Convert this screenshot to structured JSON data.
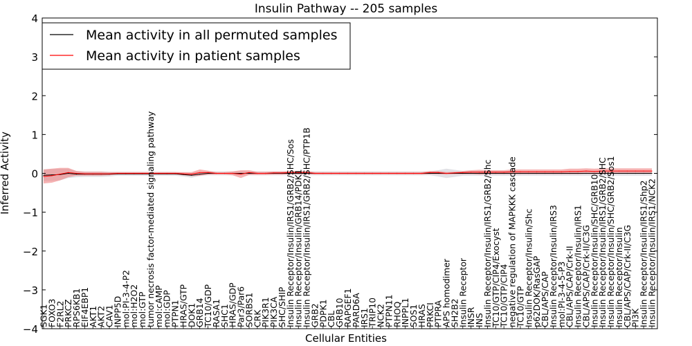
{
  "chart_data": {
    "type": "line",
    "title": "Insulin Pathway -- 205 samples",
    "xlabel": "Cellular Entities",
    "ylabel": "Inferred Activity",
    "ylim": [
      -4,
      4
    ],
    "yticks": [
      -4,
      -3,
      -2,
      -1,
      0,
      1,
      2,
      3,
      4
    ],
    "legend_location": "top-left",
    "categories": [
      "SGK1",
      "FOXO3",
      "F2RL2",
      "PRKCZ",
      "RPS6KB1",
      "EIF4EBP1",
      "AKT1",
      "AKT2",
      "CAV1",
      "INPP5D",
      "mol:PI-3-4-P2",
      "mol:H2O2",
      "mol:GTP",
      "tumor necrosis factor-mediated signaling pathway",
      "mol:cAMP",
      "mol:GDP",
      "PTPN1",
      "HRAS/GTP",
      "DOK1",
      "GRB14",
      "TC10/GDP",
      "RASA1",
      "SHC1",
      "HRAS/GDP",
      "Par3/Par6",
      "SORBS1",
      "CRK",
      "PIK3R1",
      "PIK3CA",
      "SHC/SHIP",
      "Insulin Receptor/Insulin/IRS1/GRB2/SHC/Sos",
      "Insulin Receptor/Insulin/GRB14/PDK1",
      "Insulin Receptor/Insulin/IRS1/GRB2/SHC/PTP1B",
      "GRB2",
      "PDPK1",
      "CBL",
      "GRB10",
      "RAPGEF1",
      "PARD6A",
      "IRS1",
      "TRIP10",
      "NCK2",
      "PTPN11",
      "RHOQ",
      "INPPL1",
      "SOS1",
      "HRAS",
      "PRKCI",
      "PTPRA",
      "APS homodimer",
      "SH2B2",
      "Insulin Receptor",
      "INSR",
      "INS",
      "Insulin Receptor/Insulin/IRS1/GRB2/Shc",
      "TC10/GTP/CIP4/Exocyst",
      "TC10/GTP/CIP4",
      "negative regulation of MAPKKK cascade",
      "TC10/GTP",
      "Insulin Receptor/Insulin/Shc",
      "p62DOK/RasGAP",
      "CBL/APS/CAP",
      "Insulin Receptor/Insulin/IRS3",
      "mol:PI-3-4-5-P3",
      "CBL/APS/CAP/Crk-II",
      "Insulin Receptor/Insulin/IRS1",
      "CBL/APS/CAP/Crk-II/C3G",
      "Insulin Receptor/Insulin/SHC/GRB10",
      "Insulin Receptor/Insulin/IRS1/GRB2/SHC",
      "Insulin Receptor/Insulin/SHC/GRB2/Sos1",
      "Insulin Receptor/Insulin",
      "CBL/APS/CAP/Crk-II/C3G",
      "PI3K",
      "Insulin Receptor/Insulin/IRS1/Shp2",
      "Insulin Receptor/Insulin/IRS1/NCK2"
    ],
    "series": [
      {
        "name": "Mean activity in all permuted samples",
        "color": "#000000",
        "band_color": "#c8c8d0",
        "values": [
          -0.05,
          -0.04,
          -0.03,
          0.0,
          -0.02,
          -0.02,
          -0.02,
          -0.02,
          -0.02,
          -0.01,
          -0.01,
          -0.01,
          -0.01,
          -0.01,
          -0.01,
          -0.01,
          -0.01,
          -0.03,
          -0.05,
          -0.02,
          0.0,
          0.0,
          0.0,
          0.0,
          0.0,
          0.0,
          0.0,
          0.0,
          0.0,
          0.0,
          0.0,
          0.0,
          0.0,
          0.0,
          0.0,
          0.0,
          0.0,
          0.0,
          0.0,
          0.0,
          0.0,
          0.0,
          0.0,
          0.0,
          0.0,
          0.0,
          0.0,
          0.0,
          0.0,
          0.0,
          0.0,
          0.0,
          0.0,
          0.0,
          0.0,
          0.0,
          0.0,
          0.0,
          0.0,
          0.0,
          0.0,
          0.0,
          0.0,
          0.0,
          0.0,
          0.0,
          0.0,
          0.0,
          0.0,
          0.0,
          0.0,
          0.0,
          0.0,
          0.0,
          0.0
        ],
        "band_halfwidth": [
          0.15,
          0.15,
          0.15,
          0.12,
          0.08,
          0.07,
          0.07,
          0.07,
          0.06,
          0.05,
          0.05,
          0.05,
          0.05,
          0.05,
          0.05,
          0.05,
          0.05,
          0.05,
          0.06,
          0.05,
          0.05,
          0.05,
          0.05,
          0.05,
          0.05,
          0.05,
          0.05,
          0.05,
          0.05,
          0.05,
          0.05,
          0.05,
          0.05,
          0.05,
          0.05,
          0.05,
          0.05,
          0.05,
          0.05,
          0.05,
          0.05,
          0.05,
          0.05,
          0.05,
          0.05,
          0.05,
          0.05,
          0.05,
          0.08,
          0.12,
          0.09,
          0.06,
          0.06,
          0.06,
          0.06,
          0.06,
          0.06,
          0.06,
          0.06,
          0.06,
          0.06,
          0.06,
          0.06,
          0.06,
          0.06,
          0.06,
          0.06,
          0.06,
          0.06,
          0.06,
          0.06,
          0.06,
          0.06,
          0.06,
          0.06
        ]
      },
      {
        "name": "Mean activity in patient samples",
        "color": "#ff0000",
        "band_color": "#f08080",
        "values": [
          -0.08,
          -0.06,
          -0.02,
          0.02,
          0.0,
          -0.01,
          -0.01,
          -0.01,
          -0.01,
          0.0,
          0.0,
          0.0,
          0.0,
          0.0,
          0.0,
          0.0,
          0.0,
          -0.01,
          -0.02,
          0.02,
          0.02,
          0.0,
          0.0,
          0.0,
          -0.02,
          0.02,
          0.0,
          0.0,
          0.01,
          0.01,
          0.02,
          0.02,
          0.02,
          0.0,
          0.0,
          0.0,
          0.0,
          0.0,
          0.0,
          0.0,
          0.0,
          0.0,
          0.0,
          0.0,
          0.0,
          0.0,
          0.0,
          0.02,
          0.02,
          0.0,
          0.01,
          0.02,
          0.03,
          0.03,
          0.03,
          0.03,
          0.03,
          0.04,
          0.04,
          0.04,
          0.04,
          0.04,
          0.04,
          0.04,
          0.05,
          0.05,
          0.06,
          0.05,
          0.06,
          0.06,
          0.06,
          0.06,
          0.06,
          0.06,
          0.06
        ],
        "band_halfwidth": [
          0.18,
          0.18,
          0.16,
          0.12,
          0.06,
          0.05,
          0.05,
          0.05,
          0.04,
          0.03,
          0.03,
          0.03,
          0.03,
          0.03,
          0.03,
          0.03,
          0.03,
          0.04,
          0.05,
          0.08,
          0.05,
          0.03,
          0.03,
          0.05,
          0.1,
          0.06,
          0.04,
          0.04,
          0.04,
          0.04,
          0.04,
          0.04,
          0.04,
          0.03,
          0.03,
          0.03,
          0.03,
          0.03,
          0.03,
          0.03,
          0.03,
          0.03,
          0.03,
          0.03,
          0.03,
          0.03,
          0.03,
          0.04,
          0.04,
          0.03,
          0.03,
          0.04,
          0.05,
          0.06,
          0.05,
          0.05,
          0.05,
          0.06,
          0.06,
          0.06,
          0.06,
          0.06,
          0.06,
          0.06,
          0.07,
          0.07,
          0.07,
          0.07,
          0.07,
          0.07,
          0.07,
          0.07,
          0.07,
          0.07,
          0.07
        ]
      }
    ]
  }
}
